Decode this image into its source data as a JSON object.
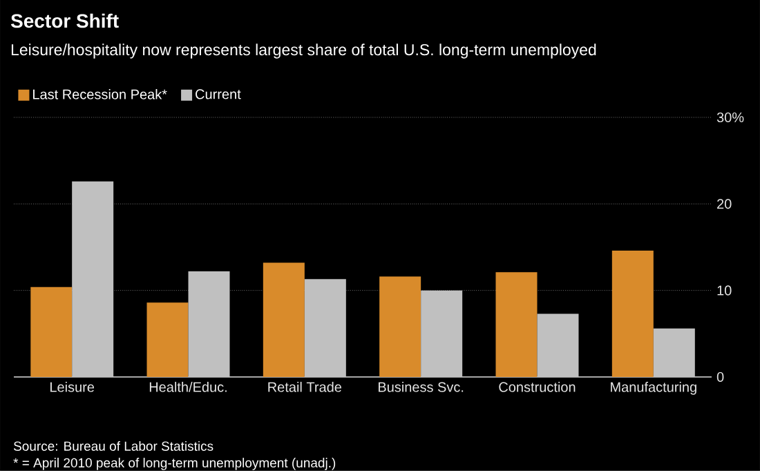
{
  "chart_data": {
    "type": "bar",
    "title": "Sector Shift",
    "subtitle": "Leisure/hospitality now represents largest share of total U.S. long-term unemployed",
    "categories": [
      "Leisure",
      "Health/Educ.",
      "Retail Trade",
      "Business Svc.",
      "Construction",
      "Manufacturing"
    ],
    "series": [
      {
        "name": "Last Recession Peak*",
        "color": "#d98b2b",
        "values": [
          10.4,
          8.6,
          13.2,
          11.6,
          12.1,
          14.6
        ]
      },
      {
        "name": "Current",
        "color": "#c0c0c0",
        "values": [
          22.6,
          12.2,
          11.3,
          10.0,
          7.3,
          5.6
        ]
      }
    ],
    "ylim": [
      0,
      30
    ],
    "yticks": [
      0,
      10,
      20,
      {
        "value": 30,
        "label": "30%"
      }
    ],
    "grid": "y",
    "legend": "top left",
    "annotations": [
      "Source: Bureau of Labor Statistics",
      "* = April 2010 peak of long-term unemployment (unadj.)"
    ]
  }
}
